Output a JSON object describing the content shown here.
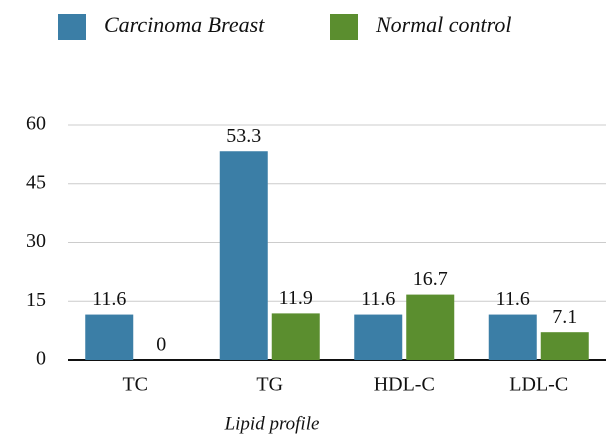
{
  "chart_data": {
    "type": "bar",
    "x_label": "Lipid profile",
    "categories": [
      "TC",
      "TG",
      "HDL-C",
      "LDL-C"
    ],
    "series": [
      {
        "name": "Carcinoma Breast",
        "color": "#3b7ea6",
        "values": [
          11.6,
          53.3,
          11.6,
          11.6
        ]
      },
      {
        "name": "Normal control",
        "color": "#5b8e2f",
        "values": [
          0,
          11.9,
          16.7,
          7.1
        ]
      }
    ],
    "ylim": [
      0,
      60
    ],
    "yticks": [
      0,
      15,
      30,
      45,
      60
    ],
    "grid": true,
    "legend": "top"
  }
}
